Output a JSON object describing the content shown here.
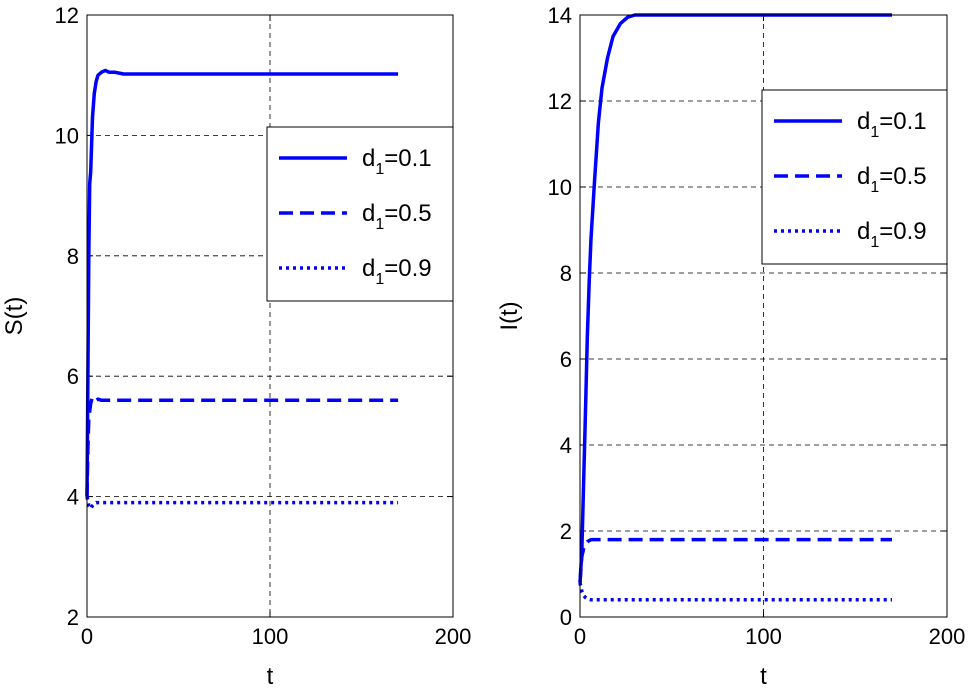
{
  "chart_data": [
    {
      "type": "line",
      "title": "",
      "xlabel": "t",
      "ylabel": "S(t)",
      "xlim": [
        0,
        200
      ],
      "ylim": [
        2,
        12
      ],
      "xticks": [
        0,
        100,
        200
      ],
      "yticks": [
        2,
        4,
        6,
        8,
        10,
        12
      ],
      "grid": true,
      "legend_position": "right",
      "series": [
        {
          "name": "d1=0.1",
          "legend_main": "d",
          "legend_sub": "1",
          "legend_rest": "=0.1",
          "style": "solid",
          "color": "#0000FF",
          "x": [
            0,
            0.5,
            1,
            1.5,
            2,
            3,
            4,
            5,
            6,
            8,
            10,
            12,
            15,
            20,
            30,
            50,
            100,
            170
          ],
          "y": [
            4.0,
            6.0,
            8.0,
            9.2,
            9.4,
            10.3,
            10.7,
            10.9,
            11.0,
            11.05,
            11.08,
            11.05,
            11.05,
            11.02,
            11.02,
            11.02,
            11.02,
            11.02
          ]
        },
        {
          "name": "d1=0.5",
          "legend_main": "d",
          "legend_sub": "1",
          "legend_rest": "=0.5",
          "style": "dashed",
          "color": "#0000FF",
          "x": [
            0,
            0.5,
            1,
            2,
            3,
            4,
            5,
            6,
            8,
            10,
            20,
            50,
            100,
            170
          ],
          "y": [
            4.0,
            4.8,
            5.3,
            5.55,
            5.65,
            5.63,
            5.6,
            5.62,
            5.6,
            5.6,
            5.6,
            5.6,
            5.6,
            5.6
          ]
        },
        {
          "name": "d1=0.9",
          "legend_main": "d",
          "legend_sub": "1",
          "legend_rest": "=0.9",
          "style": "dotted",
          "color": "#0000FF",
          "x": [
            0,
            1,
            2,
            3,
            4,
            5,
            6,
            8,
            10,
            20,
            50,
            100,
            170
          ],
          "y": [
            4.0,
            3.85,
            3.8,
            3.85,
            3.88,
            3.9,
            3.9,
            3.9,
            3.9,
            3.9,
            3.9,
            3.9,
            3.9
          ]
        }
      ]
    },
    {
      "type": "line",
      "title": "",
      "xlabel": "t",
      "ylabel": "I(t)",
      "xlim": [
        0,
        200
      ],
      "ylim": [
        0,
        14
      ],
      "xticks": [
        0,
        100,
        200
      ],
      "yticks": [
        0,
        2,
        4,
        6,
        8,
        10,
        12,
        14
      ],
      "grid": true,
      "legend_position": "top-right",
      "series": [
        {
          "name": "d1=0.1",
          "legend_main": "d",
          "legend_sub": "1",
          "legend_rest": "=0.1",
          "style": "solid",
          "color": "#0000FF",
          "x": [
            0,
            1,
            2,
            3,
            4,
            5,
            6,
            8,
            10,
            12,
            15,
            18,
            22,
            26,
            30,
            40,
            60,
            100,
            170
          ],
          "y": [
            0.8,
            1.5,
            3.2,
            4.8,
            6.5,
            7.8,
            8.8,
            10.2,
            11.5,
            12.3,
            13.0,
            13.5,
            13.8,
            13.95,
            14.0,
            14.0,
            14.0,
            14.0,
            14.0
          ]
        },
        {
          "name": "d1=0.5",
          "legend_main": "d",
          "legend_sub": "1",
          "legend_rest": "=0.5",
          "style": "dashed",
          "color": "#0000FF",
          "x": [
            0,
            1,
            2,
            3,
            4,
            6,
            8,
            10,
            20,
            50,
            100,
            170
          ],
          "y": [
            0.8,
            1.4,
            1.6,
            1.7,
            1.75,
            1.8,
            1.8,
            1.8,
            1.8,
            1.8,
            1.8,
            1.8
          ]
        },
        {
          "name": "d1=0.9",
          "legend_main": "d",
          "legend_sub": "1",
          "legend_rest": "=0.9",
          "style": "dotted",
          "color": "#0000FF",
          "x": [
            0,
            1,
            2,
            3,
            4,
            6,
            8,
            10,
            20,
            50,
            100,
            170
          ],
          "y": [
            0.8,
            0.6,
            0.5,
            0.45,
            0.42,
            0.4,
            0.4,
            0.4,
            0.4,
            0.4,
            0.4,
            0.4
          ]
        }
      ]
    }
  ]
}
